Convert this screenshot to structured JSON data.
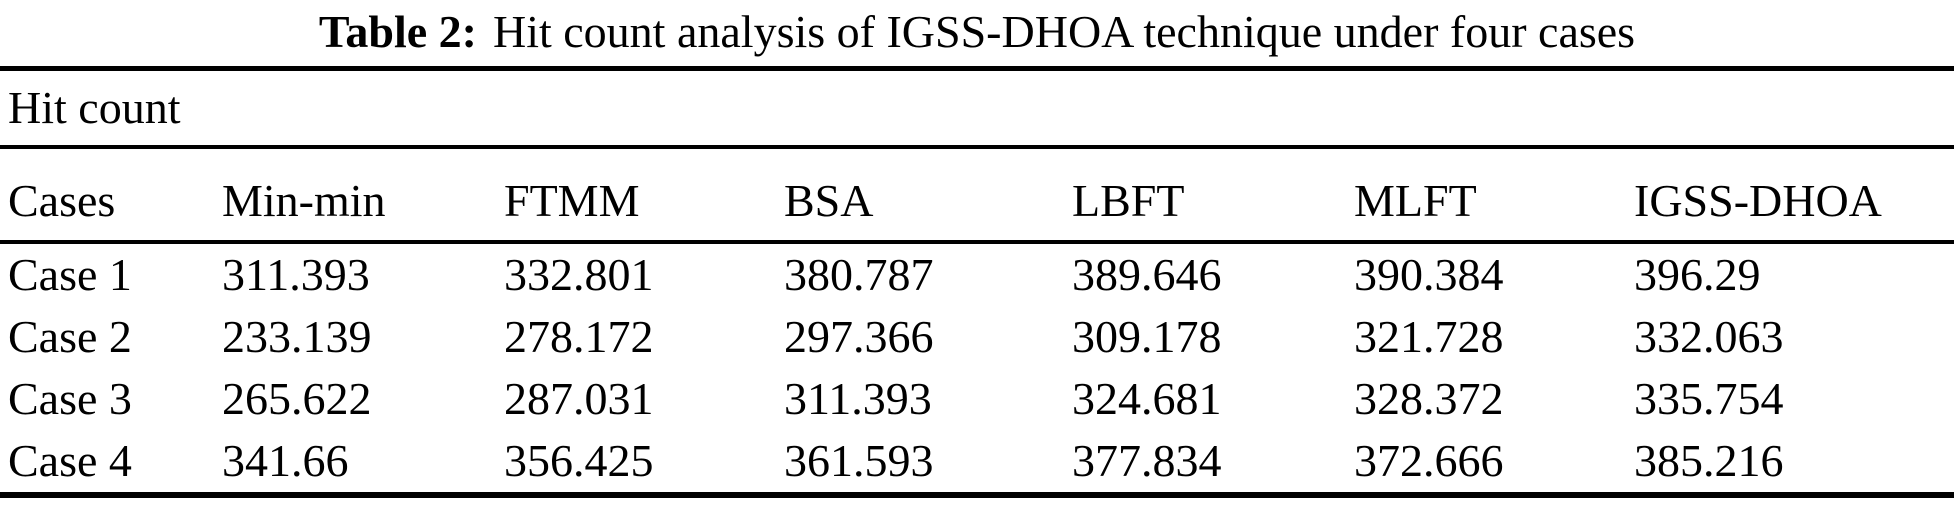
{
  "table": {
    "caption_label": "Table 2:",
    "caption_text": "Hit count analysis of IGSS-DHOA technique under four cases",
    "group_header": "Hit count",
    "columns": [
      "Cases",
      "Min-min",
      "FTMM",
      "BSA",
      "LBFT",
      "MLFT",
      "IGSS-DHOA"
    ],
    "rows": [
      {
        "case": "Case 1",
        "values": [
          "311.393",
          "332.801",
          "380.787",
          "389.646",
          "390.384",
          "396.29"
        ]
      },
      {
        "case": "Case 2",
        "values": [
          "233.139",
          "278.172",
          "297.366",
          "309.178",
          "321.728",
          "332.063"
        ]
      },
      {
        "case": "Case 3",
        "values": [
          "265.622",
          "287.031",
          "311.393",
          "324.681",
          "328.372",
          "335.754"
        ]
      },
      {
        "case": "Case 4",
        "values": [
          "341.66",
          "356.425",
          "361.593",
          "377.834",
          "372.666",
          "385.216"
        ]
      }
    ]
  },
  "chart_data": {
    "type": "table",
    "title": "Table 2: Hit count analysis of IGSS-DHOA technique under four cases",
    "section_label": "Hit count",
    "categories": [
      "Case 1",
      "Case 2",
      "Case 3",
      "Case 4"
    ],
    "series": [
      {
        "name": "Min-min",
        "values": [
          311.393,
          233.139,
          265.622,
          341.66
        ]
      },
      {
        "name": "FTMM",
        "values": [
          332.801,
          278.172,
          287.031,
          356.425
        ]
      },
      {
        "name": "BSA",
        "values": [
          380.787,
          297.366,
          311.393,
          361.593
        ]
      },
      {
        "name": "LBFT",
        "values": [
          389.646,
          309.178,
          324.681,
          377.834
        ]
      },
      {
        "name": "MLFT",
        "values": [
          390.384,
          321.728,
          328.372,
          372.666
        ]
      },
      {
        "name": "IGSS-DHOA",
        "values": [
          396.29,
          332.063,
          335.754,
          385.216
        ]
      }
    ]
  }
}
